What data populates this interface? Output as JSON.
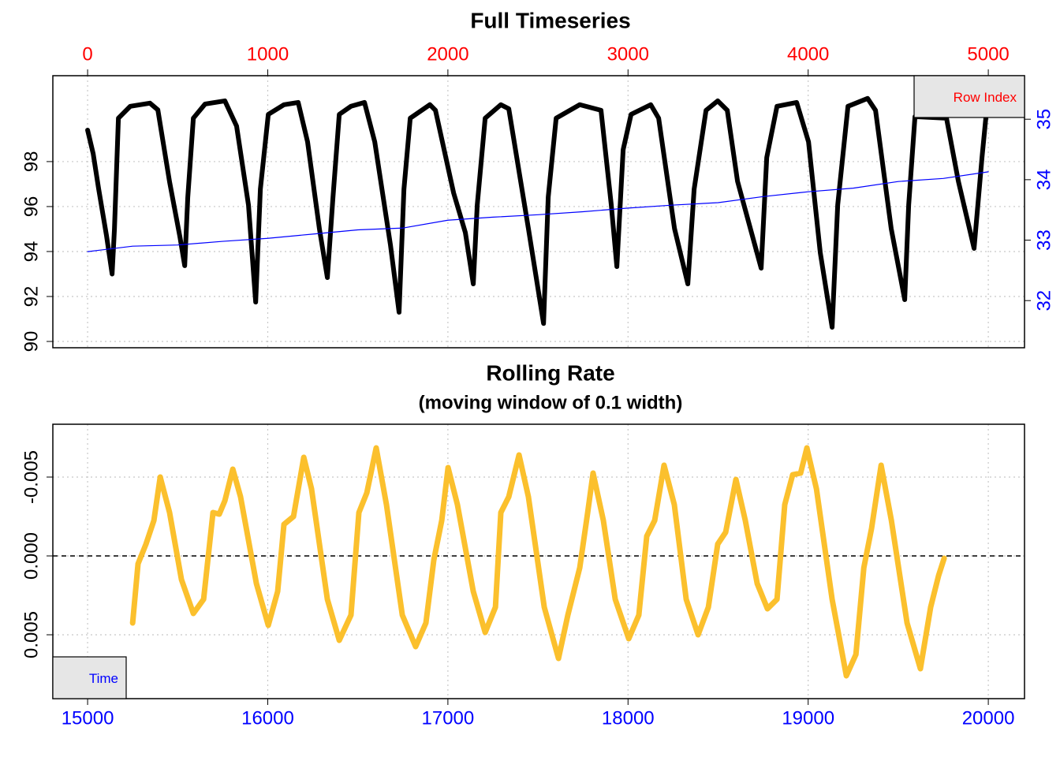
{
  "chart_data": [
    {
      "type": "line",
      "title": "Full Timeseries",
      "xaxis_position": "top",
      "xtick_color": "red",
      "y2tick_color": "blue",
      "xlim": [
        -193,
        5201
      ],
      "xticks": [
        0,
        1000,
        2000,
        3000,
        4000,
        5000
      ],
      "ylim": [
        89.72,
        101.82
      ],
      "yticks": [
        90,
        92,
        94,
        96,
        98
      ],
      "y2lim": [
        31.22,
        35.72
      ],
      "y2ticks": [
        32,
        33,
        34,
        35
      ],
      "grid": true,
      "annotation": {
        "text": "Row Index",
        "position": "top-right",
        "color": "red"
      },
      "series": [
        {
          "color": "black",
          "width": 6,
          "x": [
            0,
            31,
            61,
            105,
            136,
            149,
            171,
            237,
            346,
            390,
            455,
            512,
            539,
            556,
            587,
            652,
            762,
            827,
            893,
            933,
            959,
            1003,
            1090,
            1169,
            1221,
            1287,
            1331,
            1362,
            1397,
            1462,
            1537,
            1594,
            1681,
            1729,
            1756,
            1791,
            1900,
            1931,
            2032,
            2097,
            2141,
            2163,
            2207,
            2294,
            2338,
            2447,
            2531,
            2557,
            2601,
            2732,
            2850,
            2907,
            2938,
            2973,
            3017,
            3126,
            3170,
            3258,
            3332,
            3367,
            3433,
            3498,
            3551,
            3608,
            3739,
            3770,
            3827,
            3936,
            4002,
            4067,
            4133,
            4164,
            4221,
            4330,
            4374,
            4461,
            4536,
            4558,
            4593,
            4768,
            4834,
            4921,
            4965,
            4987
          ],
          "values": [
            99.4,
            98.35,
            96.8,
            94.7,
            93.0,
            95.0,
            99.93,
            100.46,
            100.6,
            100.3,
            97.1,
            94.67,
            93.37,
            96.4,
            99.93,
            100.56,
            100.7,
            99.58,
            96.07,
            91.75,
            96.77,
            100.1,
            100.53,
            100.63,
            98.88,
            95.0,
            92.84,
            96.4,
            100.1,
            100.46,
            100.63,
            98.88,
            94.3,
            91.3,
            96.77,
            99.93,
            100.53,
            100.28,
            96.6,
            94.84,
            92.56,
            96.07,
            99.93,
            100.53,
            100.35,
            95.02,
            90.8,
            96.42,
            99.93,
            100.53,
            100.28,
            96.07,
            93.33,
            98.53,
            100.1,
            100.53,
            99.93,
            95.02,
            92.56,
            96.77,
            100.28,
            100.7,
            100.28,
            97.12,
            93.26,
            98.18,
            100.46,
            100.63,
            98.88,
            93.96,
            90.63,
            96.07,
            100.46,
            100.81,
            100.28,
            95.02,
            91.86,
            96.07,
            100.0,
            99.93,
            97.12,
            94.14,
            98.18,
            100.0
          ]
        },
        {
          "color": "blue",
          "width": 1.2,
          "axis": "y2",
          "x": [
            0,
            250,
            500,
            750,
            1000,
            1250,
            1500,
            1750,
            2000,
            2250,
            2500,
            2750,
            3000,
            3250,
            3500,
            3750,
            4000,
            4250,
            4500,
            4750,
            5000
          ],
          "values": [
            32.81,
            32.9,
            32.92,
            32.98,
            33.03,
            33.1,
            33.17,
            33.2,
            33.33,
            33.38,
            33.42,
            33.47,
            33.53,
            33.58,
            33.62,
            33.72,
            33.8,
            33.86,
            33.97,
            34.02,
            34.13
          ]
        }
      ]
    },
    {
      "type": "line",
      "title": "Rolling Rate",
      "subtitle": "(moving window of 0.1 width)",
      "xaxis_position": "bottom",
      "xtick_color": "blue",
      "xlim": [
        14807,
        20201
      ],
      "xticks": [
        15000,
        16000,
        17000,
        18000,
        19000,
        20000
      ],
      "ylim": [
        0.00905,
        -0.00835
      ],
      "yticks": [
        -0.005,
        {
          "value": 0,
          "label": "0.000"
        },
        0.005
      ],
      "grid": true,
      "hline": 0,
      "annotation": {
        "text": "Time",
        "position": "bottom-left",
        "color": "blue"
      },
      "series": [
        {
          "color": "#fbc02d",
          "width": 7,
          "x": [
            15250,
            15280,
            15324,
            15368,
            15403,
            15455,
            15521,
            15587,
            15644,
            15696,
            15731,
            15762,
            15806,
            15849,
            15937,
            16003,
            16055,
            16090,
            16143,
            16200,
            16243,
            16331,
            16397,
            16462,
            16506,
            16550,
            16602,
            16659,
            16747,
            16821,
            16878,
            16922,
            16966,
            17001,
            17053,
            17141,
            17207,
            17264,
            17294,
            17338,
            17395,
            17447,
            17535,
            17614,
            17666,
            17732,
            17776,
            17806,
            17863,
            17929,
            18004,
            18060,
            18104,
            18148,
            18200,
            18257,
            18323,
            18389,
            18446,
            18498,
            18542,
            18599,
            18651,
            18717,
            18774,
            18827,
            18870,
            18914,
            18958,
            18993,
            19046,
            19133,
            19212,
            19265,
            19309,
            19352,
            19405,
            19462,
            19549,
            19623,
            19680,
            19724,
            19755
          ],
          "values": [
            0.00425,
            0.0005,
            -0.00075,
            -0.00225,
            -0.005,
            -0.00275,
            0.0015,
            0.00365,
            0.00275,
            -0.00275,
            -0.00265,
            -0.0035,
            -0.0055,
            -0.00375,
            0.00175,
            0.0044,
            0.00225,
            -0.002,
            -0.0025,
            -0.00625,
            -0.00425,
            0.00275,
            0.00535,
            0.00375,
            -0.00275,
            -0.004,
            -0.00685,
            -0.00325,
            0.00375,
            0.00575,
            0.00425,
            0.00025,
            -0.00225,
            -0.0056,
            -0.00325,
            0.00225,
            0.00485,
            0.00325,
            -0.00275,
            -0.00375,
            -0.0064,
            -0.00375,
            0.00325,
            0.0065,
            0.00375,
            0.00075,
            -0.00275,
            -0.00525,
            -0.00225,
            0.00275,
            0.00525,
            0.00375,
            -0.00125,
            -0.00225,
            -0.00575,
            -0.00325,
            0.00275,
            0.005,
            0.00325,
            -0.00075,
            -0.0015,
            -0.00485,
            -0.00225,
            0.00175,
            0.00335,
            0.00275,
            -0.00325,
            -0.00515,
            -0.00525,
            -0.00685,
            -0.00425,
            0.00275,
            0.0076,
            0.00625,
            0.00075,
            -0.00175,
            -0.00575,
            -0.00225,
            0.00425,
            0.00715,
            0.00325,
            0.00125,
            0.00015
          ]
        }
      ]
    }
  ]
}
